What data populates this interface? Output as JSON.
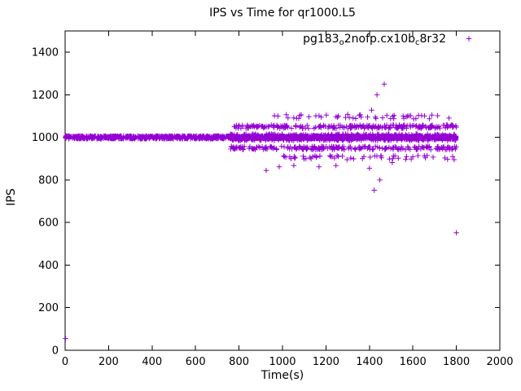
{
  "chart_data": {
    "type": "scatter",
    "title": "IPS vs Time for qr1000.L5",
    "xlabel": "Time(s)",
    "ylabel": "IPS",
    "xlim": [
      0,
      2000
    ],
    "ylim": [
      0,
      1500
    ],
    "xticks": [
      0,
      200,
      400,
      600,
      800,
      1000,
      1200,
      1400,
      1600,
      1800,
      2000
    ],
    "yticks": [
      0,
      200,
      400,
      600,
      800,
      1000,
      1200,
      1400
    ],
    "grid": false,
    "marker": "plus",
    "marker_color": "#9400d3",
    "axis_color": "#000000",
    "legend": {
      "position": "top-right",
      "parts": [
        {
          "text": "pg183",
          "sub": false
        },
        {
          "text": "o",
          "sub": true
        },
        {
          "text": "2nofp.cx10b",
          "sub": false
        },
        {
          "text": "c",
          "sub": true
        },
        {
          "text": "8r32",
          "sub": false
        }
      ]
    },
    "bands": [
      {
        "x0": 0,
        "x1": 1800,
        "y_center": 1000,
        "y_spread": 7,
        "count": 1600
      },
      {
        "x0": 760,
        "x1": 1800,
        "y_center": 1000,
        "y_spread": 16,
        "count": 500
      },
      {
        "x0": 760,
        "x1": 1800,
        "y_center": 1050,
        "y_spread": 8,
        "count": 230
      },
      {
        "x0": 760,
        "x1": 1800,
        "y_center": 950,
        "y_spread": 8,
        "count": 230
      },
      {
        "x0": 930,
        "x1": 1800,
        "y_center": 1097,
        "y_spread": 10,
        "count": 48
      },
      {
        "x0": 1000,
        "x1": 1800,
        "y_center": 905,
        "y_spread": 10,
        "count": 55
      }
    ],
    "points": [
      [
        2,
        55
      ],
      [
        925,
        845
      ],
      [
        985,
        862
      ],
      [
        1052,
        868
      ],
      [
        1168,
        862
      ],
      [
        1246,
        868
      ],
      [
        1300,
        1108
      ],
      [
        1400,
        855
      ],
      [
        1410,
        1128
      ],
      [
        1422,
        752
      ],
      [
        1435,
        1200
      ],
      [
        1448,
        800
      ],
      [
        1468,
        1250
      ],
      [
        1505,
        882
      ],
      [
        1800,
        552
      ]
    ],
    "rng_seed": 42
  }
}
